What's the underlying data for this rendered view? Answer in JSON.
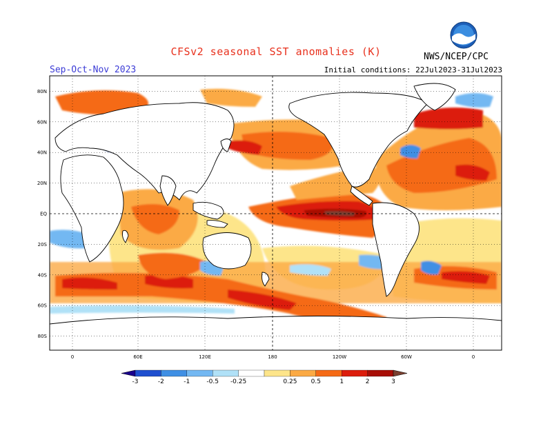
{
  "header": {
    "title": "CFSv2 seasonal SST anomalies (K)",
    "season": "Sep-Oct-Nov 2023",
    "initial_conditions": "Initial conditions: 22Jul2023-31Jul2023",
    "agency": "NWS/NCEP/CPC",
    "logo": "noaa-logo"
  },
  "map": {
    "lat_labels": [
      "80N",
      "60N",
      "40N",
      "20N",
      "EQ",
      "20S",
      "40S",
      "60S",
      "80S"
    ],
    "lon_labels": [
      "0",
      "60E",
      "120E",
      "180",
      "120W",
      "60W",
      "0"
    ],
    "projection": "cylindrical-equidistant",
    "center_longitude": "180"
  },
  "colorbar": {
    "labels": [
      "-3",
      "-2",
      "-1",
      "-0.5",
      "-0.25",
      "0.25",
      "0.5",
      "1",
      "2",
      "3"
    ],
    "colors": [
      "#1a008c",
      "#1f4fcf",
      "#3f8fe4",
      "#73b8f2",
      "#b0e1f7",
      "#ffffff",
      "#fde58a",
      "#fbaa44",
      "#f56a15",
      "#dc1d0c",
      "#a80e06",
      "#7a4030"
    ]
  }
}
